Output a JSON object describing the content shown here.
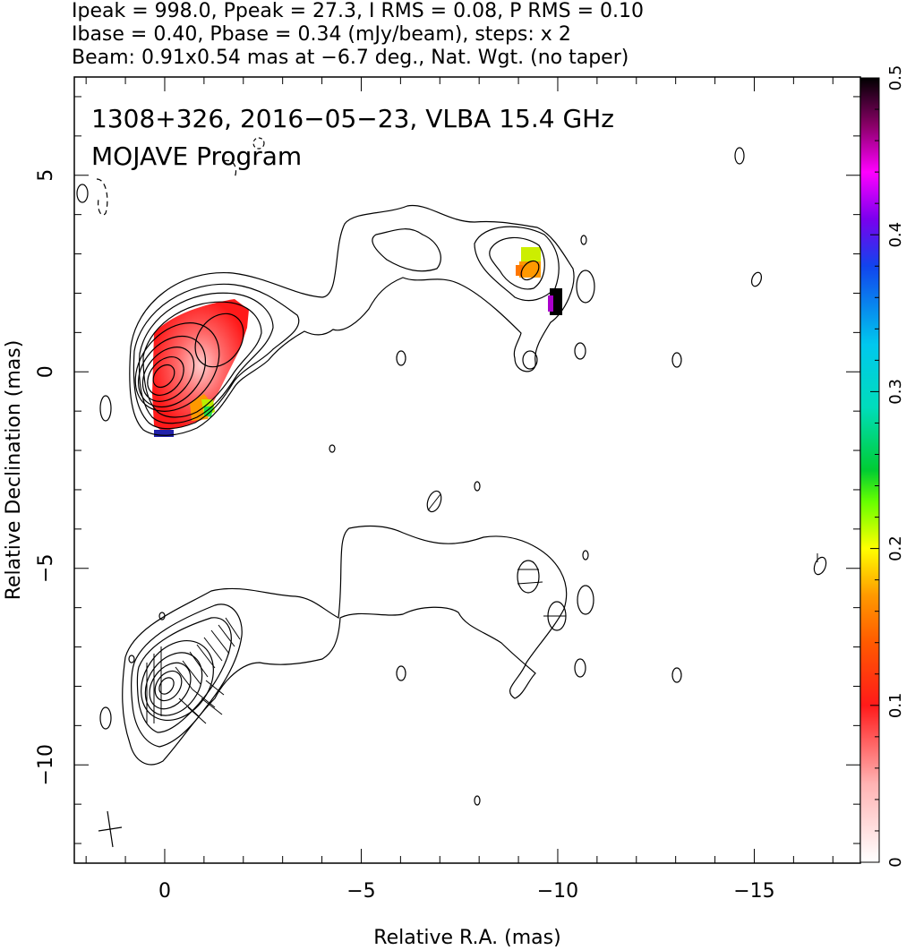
{
  "header": {
    "line1": "Ipeak = 998.0, Ppeak = 27.3, I RMS = 0.08, P RMS = 0.10",
    "line2": "Ibase = 0.40, Pbase = 0.34 (mJy/beam), steps: x 2",
    "line3": "Beam: 0.91x0.54 mas at −6.7 deg., Nat. Wgt. (no taper)"
  },
  "plot": {
    "title_line1": "1308+326, 2016−05−23, VLBA 15.4 GHz",
    "title_line2": "MOJAVE Program"
  },
  "chart_data": {
    "type": "heatmap",
    "xlabel": "Relative R.A. (mas)",
    "ylabel": "Relative Declination (mas)",
    "xlim": [
      2.3,
      -17.7
    ],
    "ylim": [
      -12.5,
      7.5
    ],
    "xticks": [
      0,
      -5,
      -10,
      -15
    ],
    "xtick_labels": [
      "0",
      "−5",
      "−10",
      "−15"
    ],
    "yticks": [
      5,
      0,
      -5,
      -10
    ],
    "ytick_labels": [
      "5",
      "0",
      "−5",
      "−10"
    ],
    "colorbar": {
      "min": 0,
      "max": 0.5,
      "ticks": [
        0,
        0.1,
        0.2,
        0.3,
        0.4,
        0.5
      ],
      "tick_labels": [
        "0",
        "0.1",
        "0.2",
        "0.3",
        "0.4",
        "0.5"
      ]
    },
    "upper_panel_offset_mas": 0,
    "lower_panel_offset_mas": -8,
    "core_ra": 0,
    "core_dec": 0,
    "pol_peak_ra": -1.2,
    "pol_peak_dec": 1.0,
    "polarized_knot_ra": -9.3,
    "polarized_knot_dec": 2.9,
    "beam": {
      "major": 0.91,
      "minor": 0.54,
      "pa_deg": -6.7
    }
  }
}
